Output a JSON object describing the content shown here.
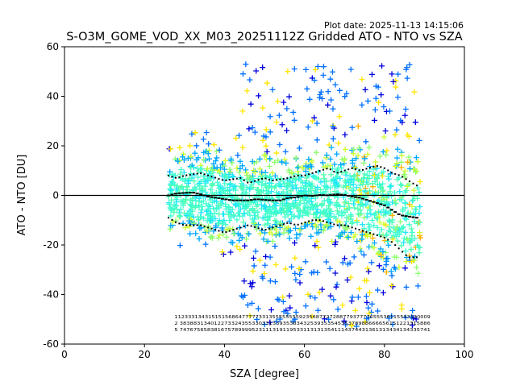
{
  "plot_date": "Plot date: 2025-11-13 14:15:06",
  "colors": {
    "axes": "#000000",
    "markers": [
      "#0000dd",
      "#0070ff",
      "#00a8ff",
      "#1ee6ff",
      "#40ffd0",
      "#50ffb0",
      "#90ff70",
      "#d0ff30",
      "#ffe600",
      "#ffb000"
    ]
  },
  "chart_data": {
    "type": "scatter",
    "title": "S-O3M_GOME_VOD_XX_M03_20251112Z Gridded ATO - NTO vs SZA",
    "xlabel": "SZA [degree]",
    "ylabel": "ATO - NTO [DU]",
    "xlim": [
      0,
      100
    ],
    "ylim": [
      -60,
      60
    ],
    "xticks": [
      0,
      20,
      40,
      60,
      80,
      100
    ],
    "yticks": [
      -60,
      -40,
      -20,
      0,
      20,
      40,
      60
    ],
    "zero_line": 0,
    "marker": "+",
    "sza_range": [
      26,
      89
    ],
    "mean_profile": {
      "x": [
        26,
        28,
        30,
        32,
        34,
        36,
        38,
        40,
        42,
        44,
        46,
        48,
        50,
        52,
        54,
        56,
        58,
        60,
        62,
        64,
        66,
        68,
        70,
        72,
        74,
        76,
        78,
        80,
        82,
        84,
        86,
        88
      ],
      "y": [
        0,
        0.8,
        1,
        1.2,
        0.5,
        -0.5,
        -1,
        -1.5,
        -2,
        -2,
        -2,
        -1.5,
        -1.8,
        -2,
        -2,
        -1,
        -0.8,
        0,
        -0.2,
        0.2,
        0,
        0.5,
        0.2,
        -0.5,
        -1,
        -2,
        -3,
        -4,
        -6,
        -8,
        -8.5,
        -9
      ]
    },
    "upper_sigma_profile": {
      "x": [
        26,
        28,
        30,
        32,
        34,
        36,
        38,
        40,
        42,
        44,
        46,
        48,
        50,
        52,
        54,
        56,
        58,
        60,
        62,
        64,
        66,
        68,
        70,
        72,
        74,
        76,
        78,
        80,
        82,
        84,
        86,
        88
      ],
      "y": [
        8,
        7,
        8,
        8.5,
        9,
        8,
        7,
        6,
        6.5,
        7,
        5,
        6,
        7,
        6,
        6.5,
        7,
        8,
        8,
        9,
        10,
        11,
        9,
        10,
        11,
        10,
        11,
        12,
        11,
        9,
        8,
        6,
        4
      ]
    },
    "lower_sigma_profile": {
      "x": [
        26,
        28,
        30,
        32,
        34,
        36,
        38,
        40,
        42,
        44,
        46,
        48,
        50,
        52,
        54,
        56,
        58,
        60,
        62,
        64,
        66,
        68,
        70,
        72,
        74,
        76,
        78,
        80,
        82,
        84,
        86,
        88
      ],
      "y": [
        -9,
        -11,
        -12,
        -12,
        -12,
        -13,
        -14,
        -15,
        -14,
        -13,
        -12,
        -13,
        -14,
        -13,
        -12,
        -11,
        -12,
        -11,
        -10,
        -10,
        -11,
        -12,
        -12,
        -13,
        -14,
        -15,
        -16,
        -17,
        -19,
        -22,
        -25,
        -25
      ]
    },
    "count_rows": [
      "1123331343151515686477777331355555555923568772728877937777655536115593330009",
      "2 3838831340122733243553303313393538343253935354535378988666656151221315886",
      "5 7476756583816757899995231113191195331131313541114374431361313434134335741"
    ]
  }
}
